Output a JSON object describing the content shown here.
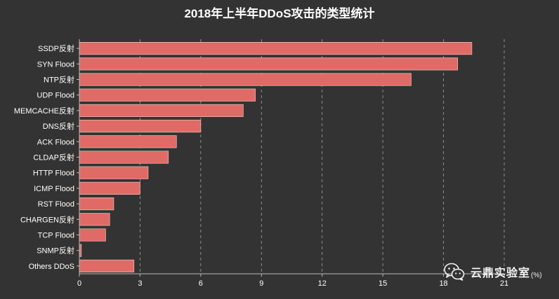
{
  "chart_data": {
    "type": "bar",
    "orientation": "horizontal",
    "title": "2018年上半年DDoS攻击的类型统计",
    "categories": [
      "SSDP反射",
      "SYN Flood",
      "NTP反射",
      "UDP Flood",
      "MEMCACHE反射",
      "DNS反射",
      "ACK Flood",
      "CLDAP反射",
      "HTTP Flood",
      "ICMP Flood",
      "RST Flood",
      "CHARGEN反射",
      "TCP Flood",
      "SNMP反射",
      "Others DDoS"
    ],
    "values": [
      19.4,
      18.7,
      16.4,
      8.7,
      8.1,
      6.0,
      4.8,
      4.4,
      3.4,
      3.0,
      1.7,
      1.5,
      1.3,
      0.1,
      2.7
    ],
    "xticks": [
      0,
      3,
      6,
      9,
      12,
      15,
      18,
      21
    ],
    "xlim": [
      0,
      21
    ],
    "grid": "vertical-dashed",
    "unit_label": "(%)",
    "colors": {
      "background": "#333333",
      "bar": "#e06b66",
      "bar_stroke": "#f0d0ce",
      "text": "#ffffff",
      "axis": "#bbbbbb",
      "grid": "#cccccc"
    }
  },
  "watermark": {
    "icon": "wechat-icon",
    "text": "云鼎实验室"
  }
}
